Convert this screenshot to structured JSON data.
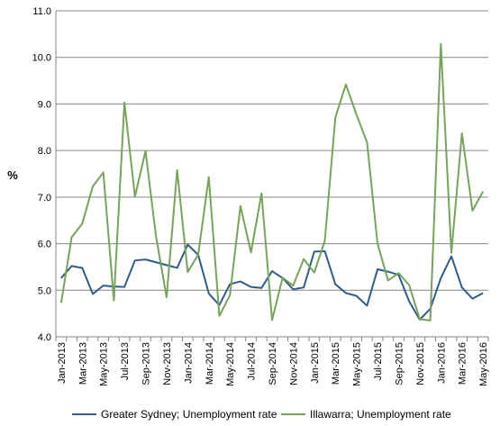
{
  "chart_data": {
    "type": "line",
    "title": "",
    "xlabel": "",
    "ylabel": "%",
    "ylim": [
      4.0,
      11.0
    ],
    "yticks": [
      "4.0",
      "5.0",
      "6.0",
      "7.0",
      "8.0",
      "9.0",
      "10.0",
      "11.0"
    ],
    "grid": "horizontal",
    "legend_position": "bottom",
    "x": [
      "Jan-2013",
      "Feb-2013",
      "Mar-2013",
      "Apr-2013",
      "May-2013",
      "Jun-2013",
      "Jul-2013",
      "Aug-2013",
      "Sep-2013",
      "Oct-2013",
      "Nov-2013",
      "Dec-2013",
      "Jan-2014",
      "Feb-2014",
      "Mar-2014",
      "Apr-2014",
      "May-2014",
      "Jun-2014",
      "Jul-2014",
      "Aug-2014",
      "Sep-2014",
      "Oct-2014",
      "Nov-2014",
      "Dec-2014",
      "Jan-2015",
      "Feb-2015",
      "Mar-2015",
      "Apr-2015",
      "May-2015",
      "Jun-2015",
      "Jul-2015",
      "Aug-2015",
      "Sep-2015",
      "Oct-2015",
      "Nov-2015",
      "Dec-2015",
      "Jan-2016",
      "Feb-2016",
      "Mar-2016",
      "Apr-2016",
      "May-2016"
    ],
    "x_tick_labels": [
      "Jan-2013",
      "Mar-2013",
      "May-2013",
      "Jul-2013",
      "Sep-2013",
      "Nov-2013",
      "Jan-2014",
      "Mar-2014",
      "May-2014",
      "Jul-2014",
      "Sep-2014",
      "Nov-2014",
      "Jan-2015",
      "Mar-2015",
      "May-2015",
      "Jul-2015",
      "Sep-2015",
      "Nov-2015",
      "Jan-2016",
      "Mar-2016",
      "May-2016"
    ],
    "series": [
      {
        "name": "Greater Sydney; Unemployment rate",
        "color": "#2e5d8c",
        "values": [
          5.26,
          5.52,
          5.48,
          4.92,
          5.1,
          5.08,
          5.07,
          5.64,
          5.66,
          5.6,
          5.54,
          5.48,
          5.98,
          5.76,
          4.93,
          4.68,
          5.13,
          5.19,
          5.07,
          5.05,
          5.41,
          5.26,
          5.02,
          5.06,
          5.83,
          5.84,
          5.13,
          4.94,
          4.88,
          4.67,
          5.45,
          5.4,
          5.33,
          4.76,
          4.37,
          4.6,
          5.26,
          5.73,
          5.06,
          4.82,
          4.94
        ]
      },
      {
        "name": "Illawarra; Unemployment rate",
        "color": "#77a35b",
        "values": [
          4.73,
          6.14,
          6.43,
          7.23,
          7.53,
          4.78,
          9.03,
          7.01,
          7.99,
          6.15,
          4.85,
          7.58,
          5.39,
          5.77,
          7.43,
          4.45,
          4.89,
          6.81,
          5.81,
          7.08,
          4.36,
          5.27,
          5.1,
          5.67,
          5.38,
          6.06,
          8.71,
          9.42,
          8.77,
          8.18,
          6.0,
          5.21,
          5.37,
          5.11,
          4.38,
          4.35,
          10.29,
          5.8,
          8.37,
          6.71,
          7.12
        ]
      }
    ]
  }
}
